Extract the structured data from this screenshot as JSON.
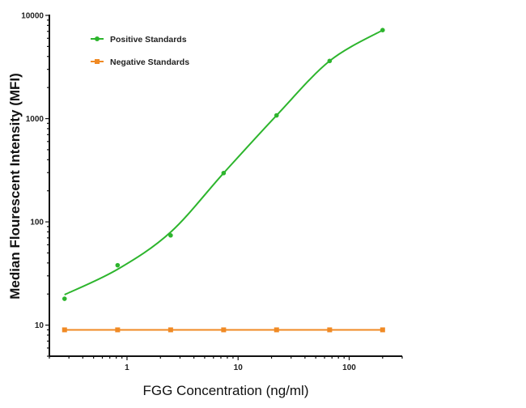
{
  "chart_data": {
    "type": "line",
    "title": "",
    "xlabel": "FGG Concentration (ng/ml)",
    "ylabel": "Median Flourescent Intensity (MFI)",
    "xscale": "log",
    "yscale": "log",
    "xlim": [
      0.2,
      300
    ],
    "ylim": [
      5,
      10000
    ],
    "xticks": [
      {
        "value": 1,
        "label": "1"
      },
      {
        "value": 10,
        "label": "10"
      },
      {
        "value": 100,
        "label": "100"
      }
    ],
    "yticks": [
      {
        "value": 10,
        "label": "10"
      },
      {
        "value": 100,
        "label": "100"
      },
      {
        "value": 1000,
        "label": "1000"
      },
      {
        "value": 10000,
        "label": "10000"
      }
    ],
    "grid": false,
    "legend_position": "top-left",
    "series": [
      {
        "name": "Positive Standards",
        "color": "#2db52d",
        "marker": "circle",
        "curve": "smooth fit",
        "x": [
          0.274,
          0.823,
          2.47,
          7.41,
          22.2,
          66.7,
          200
        ],
        "y": [
          18,
          38,
          74,
          297,
          1075,
          3620,
          7200
        ]
      },
      {
        "name": "Negative Standards",
        "color": "#f08a24",
        "marker": "square",
        "curve": "straight",
        "x": [
          0.274,
          0.823,
          2.47,
          7.41,
          22.2,
          66.7,
          200
        ],
        "y": [
          9,
          9,
          9,
          9,
          9,
          9,
          9
        ]
      }
    ]
  }
}
